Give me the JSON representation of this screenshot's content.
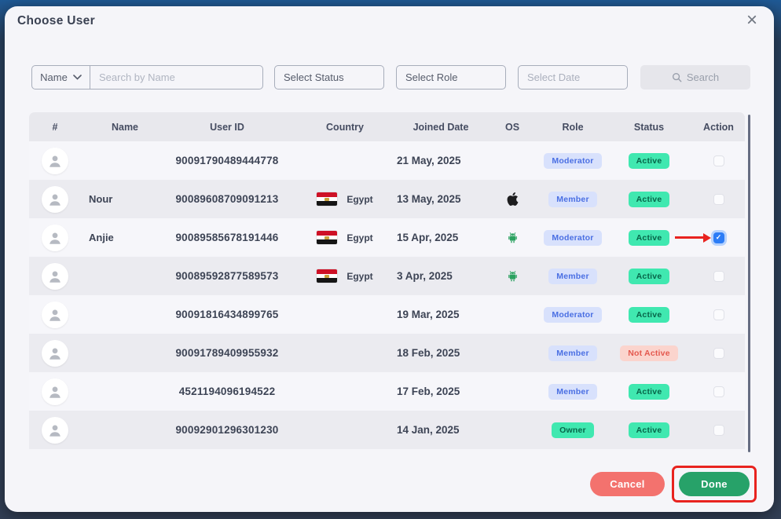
{
  "window": {
    "title": "Choose User",
    "close_label": "×"
  },
  "filters": {
    "name_dropdown_label": "Name",
    "search_placeholder": "Search by Name",
    "status_placeholder": "Select Status",
    "role_placeholder": "Select Role",
    "date_placeholder": "Select Date",
    "search_button_label": "Search"
  },
  "table": {
    "columns": [
      "#",
      "Name",
      "User ID",
      "Country",
      "Joined Date",
      "OS",
      "Role",
      "Status",
      "Action"
    ],
    "rows": [
      {
        "name": "",
        "user_id": "90091790489444778",
        "country": "",
        "joined": "21 May, 2025",
        "os": "",
        "role": "Moderator",
        "status": "Active",
        "checked": false,
        "arrow": false
      },
      {
        "name": "Nour",
        "user_id": "90089608709091213",
        "country": "Egypt",
        "joined": "13 May, 2025",
        "os": "apple",
        "role": "Member",
        "status": "Active",
        "checked": false,
        "arrow": false
      },
      {
        "name": "Anjie",
        "user_id": "90089585678191446",
        "country": "Egypt",
        "joined": "15 Apr, 2025",
        "os": "android",
        "role": "Moderator",
        "status": "Active",
        "checked": true,
        "arrow": true
      },
      {
        "name": "",
        "user_id": "90089592877589573",
        "country": "Egypt",
        "joined": "3 Apr, 2025",
        "os": "android",
        "role": "Member",
        "status": "Active",
        "checked": false,
        "arrow": false
      },
      {
        "name": "",
        "user_id": "90091816434899765",
        "country": "",
        "joined": "19 Mar, 2025",
        "os": "",
        "role": "Moderator",
        "status": "Active",
        "checked": false,
        "arrow": false
      },
      {
        "name": "",
        "user_id": "90091789409955932",
        "country": "",
        "joined": "18 Feb, 2025",
        "os": "",
        "role": "Member",
        "status": "Not Active",
        "checked": false,
        "arrow": false
      },
      {
        "name": "",
        "user_id": "4521194096194522",
        "country": "",
        "joined": "17 Feb, 2025",
        "os": "",
        "role": "Member",
        "status": "Active",
        "checked": false,
        "arrow": false
      },
      {
        "name": "",
        "user_id": "90092901296301230",
        "country": "",
        "joined": "14 Jan, 2025",
        "os": "",
        "role": "Owner",
        "status": "Active",
        "checked": false,
        "arrow": false
      }
    ]
  },
  "footer": {
    "cancel_label": "Cancel",
    "done_label": "Done"
  },
  "icons": {
    "close": "close-icon",
    "chevron": "chevron-down-icon",
    "search": "search-icon",
    "avatar": "user-avatar-icon",
    "apple": "apple-icon",
    "android": "android-icon",
    "flag": "egypt-flag-icon"
  },
  "colors": {
    "active_badge": "#40e8b0",
    "role_badge_bg": "#d8e1fc",
    "role_badge_text": "#4a6fe3",
    "not_active_bg": "#fbd4cd",
    "not_active_text": "#e4584e",
    "cancel": "#f3726e",
    "done": "#27a269",
    "annotation_red": "#e8231f",
    "checkbox_checked": "#2c7cf6"
  }
}
